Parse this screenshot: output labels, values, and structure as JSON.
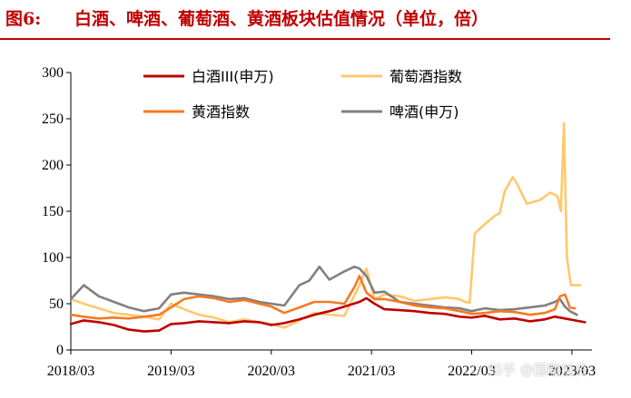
{
  "header": {
    "figure_no": "图6:",
    "title": "白酒、啤酒、葡萄酒、黄酒板块估值情况（单位，倍）"
  },
  "watermark": "知乎 @国融投资",
  "colors": {
    "title_red": "#c00000",
    "baijiu": "#c00000",
    "wine": "#ffc86e",
    "huangjiu": "#f57a22",
    "beer": "#808080"
  },
  "chart_data": {
    "type": "line",
    "title": "",
    "xlabel": "",
    "ylabel": "",
    "x_tick_labels": [
      "2018/03",
      "2019/03",
      "2020/03",
      "2021/03",
      "2022/03",
      "2023/03"
    ],
    "x_tick_values": [
      2018.17,
      2019.17,
      2020.17,
      2021.17,
      2022.17,
      2023.17
    ],
    "xlim": [
      2018.17,
      2023.37
    ],
    "ylim": [
      0,
      300
    ],
    "y_ticks": [
      0,
      50,
      100,
      150,
      200,
      250,
      300
    ],
    "grid": false,
    "legend_position": "top-center",
    "series": [
      {
        "name": "白酒III(申万)",
        "color": "#c00000",
        "x": [
          2018.17,
          2018.3,
          2018.45,
          2018.6,
          2018.75,
          2018.9,
          2019.05,
          2019.17,
          2019.3,
          2019.45,
          2019.6,
          2019.75,
          2019.9,
          2020.05,
          2020.17,
          2020.3,
          2020.45,
          2020.6,
          2020.75,
          2020.9,
          2021.05,
          2021.12,
          2021.2,
          2021.3,
          2021.45,
          2021.6,
          2021.75,
          2021.9,
          2022.05,
          2022.17,
          2022.3,
          2022.45,
          2022.6,
          2022.75,
          2022.9,
          2023.0,
          2023.1,
          2023.2,
          2023.3
        ],
        "y": [
          28,
          32,
          30,
          27,
          22,
          20,
          21,
          28,
          29,
          31,
          30,
          29,
          31,
          30,
          27,
          29,
          33,
          38,
          42,
          47,
          52,
          56,
          50,
          44,
          43,
          42,
          40,
          39,
          36,
          35,
          37,
          33,
          34,
          31,
          33,
          36,
          34,
          32,
          30
        ]
      },
      {
        "name": "葡萄酒指数",
        "color": "#ffc86e",
        "x": [
          2018.17,
          2018.3,
          2018.45,
          2018.6,
          2018.75,
          2018.9,
          2019.05,
          2019.17,
          2019.3,
          2019.45,
          2019.6,
          2019.75,
          2019.9,
          2020.05,
          2020.17,
          2020.3,
          2020.45,
          2020.6,
          2020.75,
          2020.9,
          2021.05,
          2021.12,
          2021.2,
          2021.3,
          2021.45,
          2021.6,
          2021.75,
          2021.9,
          2022.05,
          2022.1,
          2022.15,
          2022.2,
          2022.3,
          2022.4,
          2022.45,
          2022.5,
          2022.58,
          2022.62,
          2022.72,
          2022.85,
          2022.95,
          2023.0,
          2023.03,
          2023.06,
          2023.09,
          2023.12,
          2023.16,
          2023.25
        ],
        "y": [
          55,
          50,
          45,
          40,
          38,
          36,
          33,
          50,
          44,
          38,
          35,
          30,
          33,
          30,
          28,
          24,
          32,
          40,
          38,
          37,
          70,
          88,
          55,
          60,
          58,
          53,
          55,
          57,
          55,
          52,
          51,
          126,
          136,
          145,
          148,
          172,
          187,
          180,
          158,
          162,
          170,
          168,
          165,
          150,
          245,
          100,
          70,
          70
        ]
      },
      {
        "name": "黄酒指数",
        "color": "#f57a22",
        "x": [
          2018.17,
          2018.3,
          2018.45,
          2018.6,
          2018.75,
          2018.9,
          2019.05,
          2019.17,
          2019.3,
          2019.45,
          2019.6,
          2019.75,
          2019.9,
          2020.05,
          2020.17,
          2020.3,
          2020.45,
          2020.6,
          2020.75,
          2020.9,
          2021.0,
          2021.05,
          2021.12,
          2021.2,
          2021.3,
          2021.45,
          2021.6,
          2021.75,
          2021.9,
          2022.05,
          2022.17,
          2022.3,
          2022.45,
          2022.6,
          2022.75,
          2022.9,
          2023.0,
          2023.05,
          2023.1,
          2023.15,
          2023.2
        ],
        "y": [
          38,
          36,
          34,
          35,
          34,
          36,
          38,
          46,
          55,
          58,
          56,
          52,
          54,
          50,
          47,
          40,
          46,
          52,
          52,
          50,
          68,
          80,
          62,
          55,
          55,
          52,
          48,
          46,
          45,
          42,
          39,
          40,
          42,
          41,
          38,
          40,
          44,
          58,
          60,
          46,
          45
        ]
      },
      {
        "name": "啤酒(申万)",
        "color": "#808080",
        "x": [
          2018.17,
          2018.3,
          2018.45,
          2018.6,
          2018.75,
          2018.9,
          2019.05,
          2019.17,
          2019.3,
          2019.45,
          2019.6,
          2019.75,
          2019.9,
          2020.05,
          2020.17,
          2020.3,
          2020.45,
          2020.55,
          2020.65,
          2020.75,
          2020.9,
          2021.0,
          2021.05,
          2021.12,
          2021.2,
          2021.3,
          2021.45,
          2021.6,
          2021.75,
          2021.9,
          2022.05,
          2022.17,
          2022.3,
          2022.45,
          2022.6,
          2022.75,
          2022.9,
          2023.0,
          2023.05,
          2023.1,
          2023.15,
          2023.22
        ],
        "y": [
          55,
          70,
          58,
          52,
          46,
          42,
          45,
          60,
          62,
          60,
          58,
          55,
          56,
          52,
          50,
          48,
          70,
          75,
          90,
          76,
          85,
          90,
          88,
          80,
          62,
          63,
          52,
          50,
          48,
          46,
          45,
          42,
          45,
          43,
          44,
          46,
          48,
          52,
          55,
          47,
          42,
          38
        ]
      }
    ]
  }
}
